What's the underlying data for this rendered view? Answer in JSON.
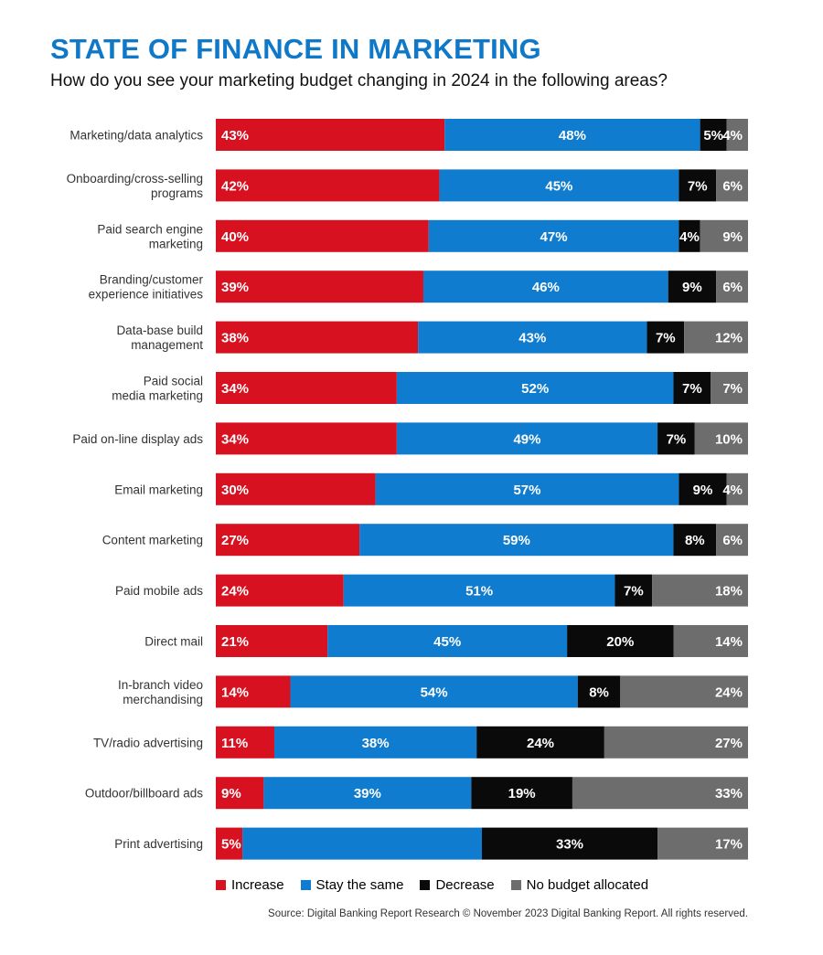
{
  "header": {
    "title": "STATE OF FINANCE IN MARKETING",
    "subtitle": "How do you see your marketing budget changing in 2024 in the following areas?"
  },
  "footer": {
    "source": "Source: Digital Banking Report Research © November 2023 Digital Banking Report. All rights reserved."
  },
  "chart_data": {
    "type": "bar",
    "orientation": "horizontal",
    "stacked": true,
    "percent_stacked": true,
    "legend_position": "bottom",
    "categories": [
      [
        "Marketing/data analytics"
      ],
      [
        "Onboarding/cross-selling",
        "programs"
      ],
      [
        "Paid search engine",
        "marketing"
      ],
      [
        "Branding/customer",
        "experience initiatives"
      ],
      [
        "Data-base build",
        "management"
      ],
      [
        "Paid social",
        "media marketing"
      ],
      [
        "Paid on-line display ads"
      ],
      [
        "Email marketing"
      ],
      [
        "Content marketing"
      ],
      [
        "Paid mobile ads"
      ],
      [
        "Direct mail"
      ],
      [
        "In-branch video",
        "merchandising"
      ],
      [
        "TV/radio advertising"
      ],
      [
        "Outdoor/billboard ads"
      ],
      [
        "Print advertising"
      ]
    ],
    "series": [
      {
        "name": "Increase",
        "color": "#d7111f",
        "values": [
          43,
          42,
          40,
          39,
          38,
          34,
          34,
          30,
          27,
          24,
          21,
          14,
          11,
          9,
          5
        ]
      },
      {
        "name": "Stay the same",
        "color": "#0f7ccf",
        "values": [
          48,
          45,
          47,
          46,
          43,
          52,
          49,
          57,
          59,
          51,
          45,
          54,
          38,
          39,
          45
        ]
      },
      {
        "name": "Decrease",
        "color": "#0a0a0a",
        "values": [
          5,
          7,
          4,
          9,
          7,
          7,
          7,
          9,
          8,
          7,
          20,
          8,
          24,
          19,
          33
        ]
      },
      {
        "name": "No budget allocated",
        "color": "#6d6d6d",
        "values": [
          4,
          6,
          9,
          6,
          12,
          7,
          10,
          4,
          6,
          18,
          14,
          24,
          27,
          33,
          17
        ]
      }
    ],
    "labels": [
      [
        "43%",
        "48%",
        "5%",
        "4%"
      ],
      [
        "42%",
        "45%",
        "7%",
        "6%"
      ],
      [
        "40%",
        "47%",
        "4%",
        "9%"
      ],
      [
        "39%",
        "46%",
        "9%",
        "6%"
      ],
      [
        "38%",
        "43%",
        "7%",
        "12%"
      ],
      [
        "34%",
        "52%",
        "7%",
        "7%"
      ],
      [
        "34%",
        "49%",
        "7%",
        "10%"
      ],
      [
        "30%",
        "57%",
        "9%",
        "4%"
      ],
      [
        "27%",
        "59%",
        "8%",
        "6%"
      ],
      [
        "24%",
        "51%",
        "7%",
        "18%"
      ],
      [
        "21%",
        "45%",
        "20%",
        "14%"
      ],
      [
        "14%",
        "54%",
        "8%",
        "24%"
      ],
      [
        "11%",
        "38%",
        "24%",
        "27%"
      ],
      [
        "9%",
        "39%",
        "19%",
        "33%"
      ],
      [
        "5%",
        "",
        "33%",
        "17%"
      ]
    ]
  }
}
